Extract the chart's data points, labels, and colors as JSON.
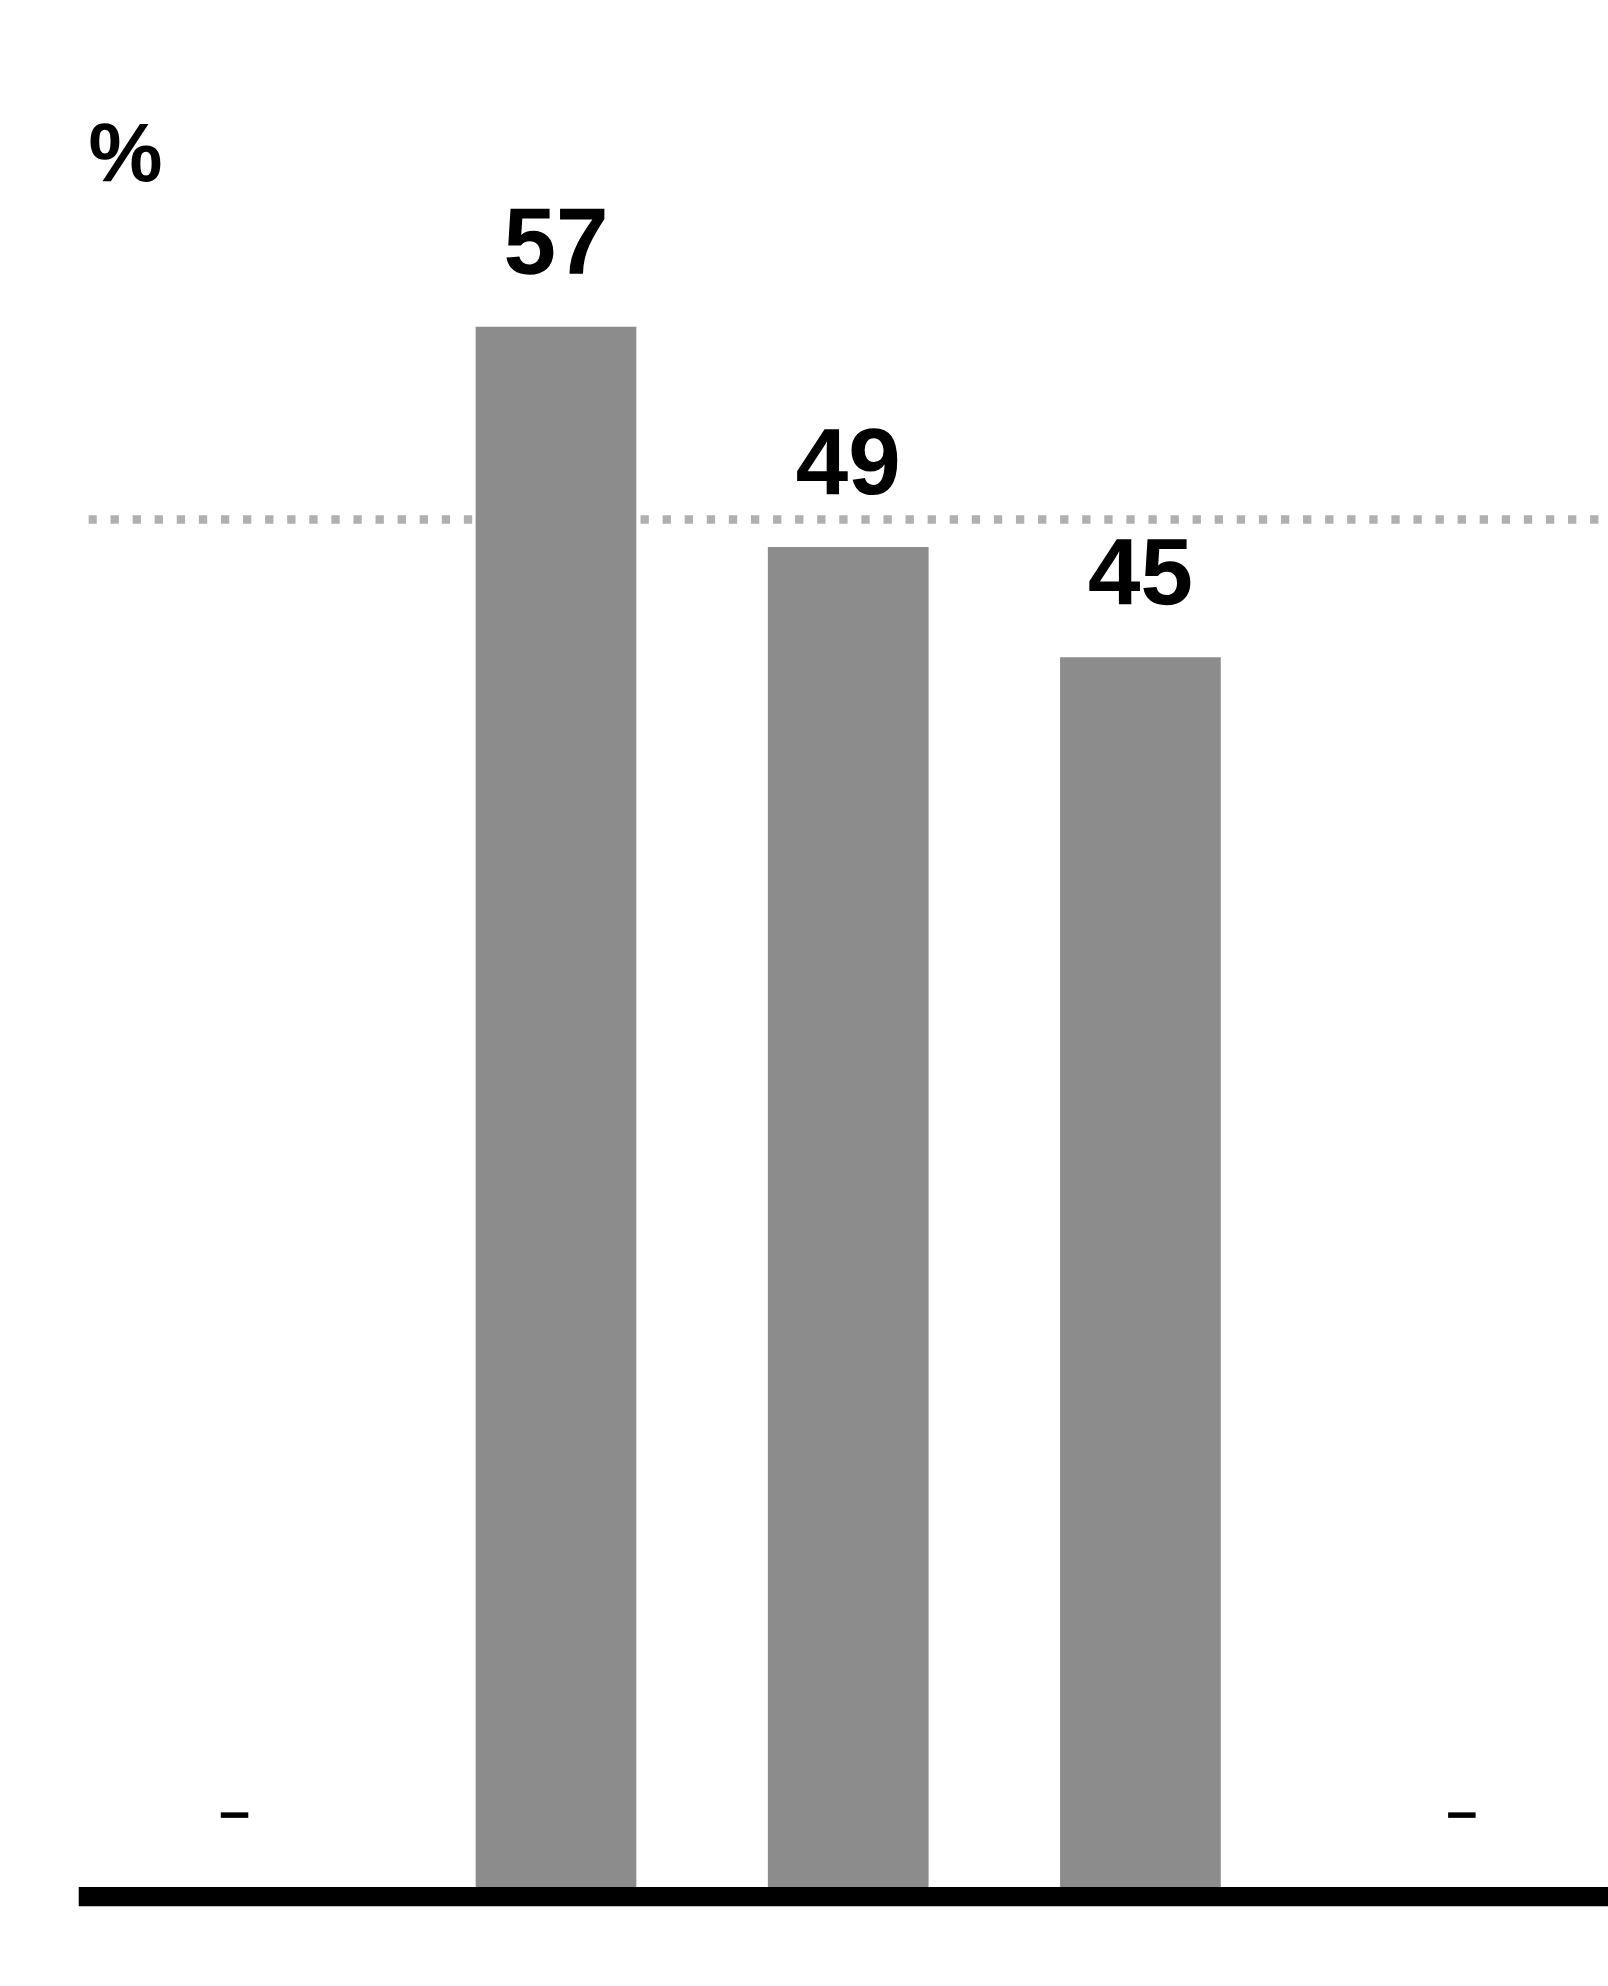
{
  "chart_data": {
    "type": "bar",
    "ylabel": "%",
    "categories": [
      null,
      null,
      null
    ],
    "values": [
      57,
      49,
      45
    ],
    "data_labels": true,
    "annotations": [
      "–",
      "–"
    ],
    "color": "#8c8c8c",
    "tick_labels": false,
    "ref_lines": [
      {
        "axis": "y",
        "value": 50,
        "line_style": "dotted",
        "color": "#b0b0b0"
      }
    ]
  }
}
